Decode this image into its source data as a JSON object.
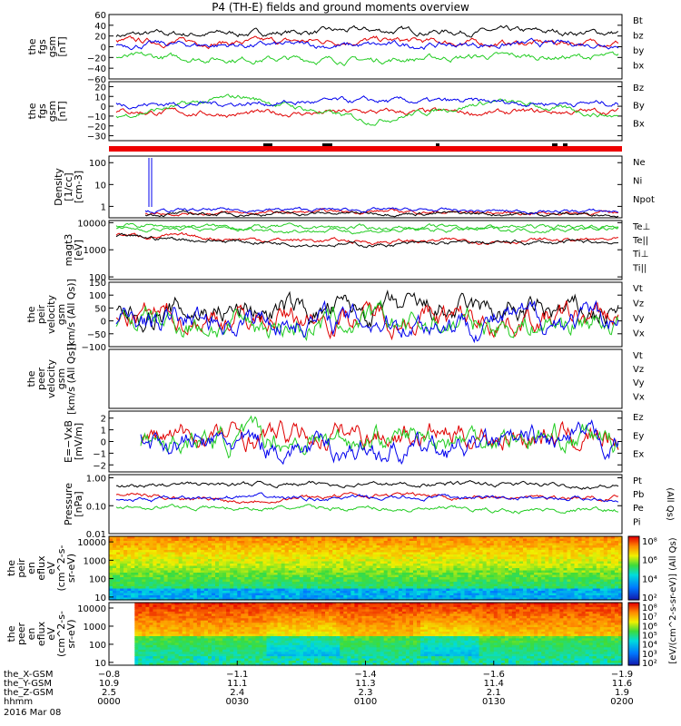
{
  "title": "P4 (TH-E) fields and ground moments overview",
  "colors": {
    "black": "#000000",
    "red": "#e00000",
    "green": "#22cc22",
    "blue": "#0000ee"
  },
  "panels": [
    {
      "id": "p1",
      "ylabel": [
        "the",
        "fgs",
        "gsm",
        "[nT]"
      ],
      "ticks": [
        "60",
        "40",
        "20",
        "0",
        "−20",
        "−40",
        "−60"
      ],
      "tickvals": [
        60,
        40,
        20,
        0,
        -20,
        -40,
        -60
      ],
      "ylim": [
        -60,
        60
      ],
      "scale": "linear",
      "legend": [
        {
          "label": "Bt",
          "color": "#000000"
        },
        {
          "label": "bz",
          "color": "#e00000"
        },
        {
          "label": "by",
          "color": "#22cc22"
        },
        {
          "label": "bx",
          "color": "#0000ee"
        }
      ]
    },
    {
      "id": "p2",
      "ylabel": [
        "the",
        "fgs",
        "gsm",
        "[nT]"
      ],
      "ticks": [
        "20",
        "10",
        "0",
        "−10",
        "−20",
        "−30"
      ],
      "tickvals": [
        20,
        10,
        0,
        -10,
        -20,
        -30
      ],
      "ylim": [
        -35,
        25
      ],
      "scale": "linear",
      "legend": [
        {
          "label": "Bz",
          "color": "#e00000"
        },
        {
          "label": "By",
          "color": "#22cc22"
        },
        {
          "label": "Bx",
          "color": "#0000ee"
        }
      ]
    },
    {
      "id": "p3",
      "ylabel": [
        "Density",
        "[1/cc]",
        "[cm-3]"
      ],
      "ticks": [
        "100",
        "10",
        "1"
      ],
      "tickvals": [
        100,
        10,
        1
      ],
      "ylim": [
        0.3,
        200
      ],
      "scale": "log",
      "legend": [
        {
          "label": "Ne",
          "color": "#e00000"
        },
        {
          "label": "Ni",
          "color": "#000000"
        },
        {
          "label": "Npot",
          "color": "#0000ee"
        }
      ]
    },
    {
      "id": "p4",
      "ylabel": [
        "magt3",
        "[eV]"
      ],
      "ticks": [
        "10000",
        "1000",
        "100"
      ],
      "tickvals": [
        10000,
        1000,
        100
      ],
      "ylim": [
        80,
        12000
      ],
      "scale": "log",
      "legend": [
        {
          "label": "Te⊥",
          "color": "#e00000"
        },
        {
          "label": "Te||",
          "color": "#000000"
        },
        {
          "label": "Ti⊥",
          "color": "#22cc22"
        },
        {
          "label": "Ti||",
          "color": "#22cc22"
        }
      ]
    },
    {
      "id": "p5",
      "ylabel": [
        "the",
        "peir",
        "velocity",
        "gsm",
        "[km/s (All Qs)]"
      ],
      "ticks": [
        "150",
        "100",
        "50",
        "0",
        "−50",
        "−100"
      ],
      "tickvals": [
        150,
        100,
        50,
        0,
        -50,
        -100
      ],
      "ylim": [
        -100,
        150
      ],
      "scale": "linear",
      "legend": [
        {
          "label": "Vt",
          "color": "#000000"
        },
        {
          "label": "Vz",
          "color": "#e00000"
        },
        {
          "label": "Vy",
          "color": "#22cc22"
        },
        {
          "label": "Vx",
          "color": "#0000ee"
        }
      ]
    },
    {
      "id": "p6",
      "ylabel": [
        "the",
        "peer",
        "velocity",
        "gsm",
        "[km/s (All Qs)]"
      ],
      "ticks": [],
      "tickvals": [],
      "ylim": [
        0,
        1
      ],
      "scale": "linear",
      "legend": [
        {
          "label": "Vt",
          "color": "#000000"
        },
        {
          "label": "Vz",
          "color": "#e00000"
        },
        {
          "label": "Vy",
          "color": "#22cc22"
        },
        {
          "label": "Vx",
          "color": "#0000ee"
        }
      ]
    },
    {
      "id": "p7",
      "ylabel": [
        "E=−VxB",
        "[mV/m]"
      ],
      "ticks": [
        "2",
        "1",
        "0",
        "−1",
        "−2"
      ],
      "tickvals": [
        2,
        1,
        0,
        -1,
        -2
      ],
      "ylim": [
        -2.6,
        2.6
      ],
      "scale": "linear",
      "legend": [
        {
          "label": "Ez",
          "color": "#e00000"
        },
        {
          "label": "Ey",
          "color": "#22cc22"
        },
        {
          "label": "Ex",
          "color": "#0000ee"
        }
      ]
    },
    {
      "id": "p8",
      "ylabel": [
        "Pressure",
        "[nPa]"
      ],
      "ticks": [
        "1.00",
        "0.10",
        "0.01"
      ],
      "tickvals": [
        1,
        0.1,
        0.01
      ],
      "ylim": [
        0.01,
        1.3
      ],
      "scale": "log",
      "legend": [
        {
          "label": "Pt",
          "color": "#000000"
        },
        {
          "label": "Pb",
          "color": "#e00000"
        },
        {
          "label": "Pe",
          "color": "#22cc22"
        },
        {
          "label": "Pi",
          "color": "#0000ee"
        }
      ],
      "side_label": "(All Qs)"
    },
    {
      "id": "p9",
      "ylabel": [
        "the",
        "peir",
        "en",
        "eflux",
        "eV",
        "(cm^2-s-",
        "sr-eV)"
      ],
      "ticks": [
        "10000",
        "1000",
        "100",
        "10"
      ],
      "tickvals": [
        10000,
        1000,
        100,
        10
      ],
      "ylim": [
        7,
        20000
      ],
      "scale": "log",
      "kind": "spectrogram"
    },
    {
      "id": "p10",
      "ylabel": [
        "the",
        "peer",
        "en",
        "eflux",
        "eV",
        "(cm^2-s-",
        "sr-eV)"
      ],
      "ticks": [
        "10000",
        "1000",
        "100",
        "10"
      ],
      "tickvals": [
        10000,
        1000,
        100,
        10
      ],
      "ylim": [
        7,
        20000
      ],
      "scale": "log",
      "kind": "spectrogram"
    }
  ],
  "colorbar": {
    "label": "[eV/(cm^2-s-sr-eV)] (All Qs)",
    "upper_ticks": [
      "10⁸",
      "10⁶",
      "10⁴",
      "10²"
    ],
    "lower_ticks": [
      "10⁸",
      "10⁷",
      "10⁶",
      "10⁵",
      "10⁴",
      "10³",
      "10²"
    ]
  },
  "x_axis": {
    "rows": [
      {
        "label": "the_X-GSM",
        "values": [
          "−0.8",
          "−1.1",
          "−1.4",
          "−1.6",
          "−1.9"
        ]
      },
      {
        "label": "the_Y-GSM",
        "values": [
          "10.9",
          "11.1",
          "11.3",
          "11.4",
          "11.6"
        ]
      },
      {
        "label": "the_Z-GSM",
        "values": [
          "2.5",
          "2.4",
          "2.3",
          "2.1",
          "1.9"
        ]
      },
      {
        "label": "hhmm",
        "values": [
          "0000",
          "0030",
          "0100",
          "0130",
          "0200"
        ]
      }
    ],
    "date": "2016 Mar 08"
  },
  "chart_data": [
    {
      "type": "line",
      "title": "P4 (TH-E) fields and ground moments overview",
      "ylabel": "the fgs gsm [nT]",
      "ylim": [
        -60,
        60
      ],
      "x": [
        "0000",
        "0030",
        "0100",
        "0130",
        "0200"
      ],
      "series": [
        {
          "name": "Bt",
          "values": [
            22,
            25,
            30,
            28,
            26
          ]
        },
        {
          "name": "bz",
          "values": [
            10,
            8,
            12,
            6,
            9
          ]
        },
        {
          "name": "by",
          "values": [
            -20,
            -22,
            -25,
            -18,
            -20
          ]
        },
        {
          "name": "bx",
          "values": [
            5,
            3,
            2,
            4,
            6
          ]
        }
      ]
    },
    {
      "type": "line",
      "ylabel": "the fgs gsm [nT]",
      "ylim": [
        -35,
        25
      ],
      "x": [
        "0000",
        "0030",
        "0100",
        "0130",
        "0200"
      ],
      "series": [
        {
          "name": "Bz",
          "values": [
            -5,
            -8,
            -6,
            -7,
            -5
          ]
        },
        {
          "name": "By",
          "values": [
            -10,
            10,
            -15,
            5,
            -10
          ]
        },
        {
          "name": "Bx",
          "values": [
            2,
            3,
            5,
            4,
            3
          ]
        }
      ]
    },
    {
      "type": "line",
      "ylabel": "Density [1/cc] [cm-3]",
      "scale": "log",
      "x": [
        "0000",
        "0030",
        "0100",
        "0130",
        "0200"
      ],
      "series": [
        {
          "name": "Ne",
          "values": [
            0.5,
            0.5,
            0.6,
            0.5,
            0.5
          ]
        },
        {
          "name": "Ni",
          "values": [
            0.45,
            0.45,
            0.5,
            0.45,
            0.45
          ]
        },
        {
          "name": "Npot",
          "values": [
            0.6,
            0.7,
            0.7,
            0.6,
            0.6
          ]
        }
      ]
    },
    {
      "type": "line",
      "ylabel": "magt3 [eV]",
      "scale": "log",
      "x": [
        "0000",
        "0030",
        "0100",
        "0130",
        "0200"
      ],
      "series": [
        {
          "name": "Te⊥",
          "values": [
            3500,
            2500,
            2000,
            2200,
            2300
          ]
        },
        {
          "name": "Te||",
          "values": [
            3000,
            2000,
            1500,
            1800,
            1900
          ]
        },
        {
          "name": "Ti⊥",
          "values": [
            8000,
            7000,
            6500,
            7000,
            7500
          ]
        },
        {
          "name": "Ti||",
          "values": [
            6000,
            5500,
            5000,
            5500,
            6000
          ]
        }
      ]
    },
    {
      "type": "line",
      "ylabel": "the peir velocity gsm [km/s (All Qs)]",
      "ylim": [
        -100,
        150
      ],
      "x": [
        "0000",
        "0030",
        "0100",
        "0130",
        "0200"
      ],
      "series": [
        {
          "name": "Vt",
          "values": [
            25,
            40,
            35,
            30,
            30
          ]
        },
        {
          "name": "Vz",
          "values": [
            10,
            10,
            20,
            5,
            10
          ]
        },
        {
          "name": "Vy",
          "values": [
            5,
            -20,
            -10,
            -15,
            0
          ]
        },
        {
          "name": "Vx",
          "values": [
            0,
            5,
            5,
            0,
            5
          ]
        }
      ]
    },
    {
      "type": "line",
      "ylabel": "E=−VxB [mV/m]",
      "ylim": [
        -2.6,
        2.6
      ],
      "x": [
        "0000",
        "0030",
        "0100",
        "0130",
        "0200"
      ],
      "series": [
        {
          "name": "Ez",
          "values": [
            0.3,
            0.4,
            0.8,
            0.5,
            0.3
          ]
        },
        {
          "name": "Ey",
          "values": [
            0.2,
            0.1,
            0.3,
            0.4,
            0.2
          ]
        },
        {
          "name": "Ex",
          "values": [
            0,
            -0.3,
            -0.8,
            -0.4,
            0
          ]
        }
      ]
    },
    {
      "type": "line",
      "ylabel": "Pressure [nPa]",
      "scale": "log",
      "x": [
        "0000",
        "0030",
        "0100",
        "0130",
        "0200"
      ],
      "series": [
        {
          "name": "Pt",
          "values": [
            0.5,
            0.6,
            0.6,
            0.6,
            0.5
          ]
        },
        {
          "name": "Pb",
          "values": [
            0.25,
            0.15,
            0.25,
            0.2,
            0.2
          ]
        },
        {
          "name": "Pe",
          "values": [
            0.1,
            0.08,
            0.08,
            0.07,
            0.07
          ]
        },
        {
          "name": "Pi",
          "values": [
            0.15,
            0.2,
            0.18,
            0.2,
            0.18
          ]
        }
      ]
    },
    {
      "type": "heatmap",
      "ylabel": "the peir en eflux eV (cm^2-s-sr-eV)",
      "scale": "log"
    },
    {
      "type": "heatmap",
      "ylabel": "the peer en eflux eV (cm^2-s-sr-eV)",
      "scale": "log"
    }
  ]
}
